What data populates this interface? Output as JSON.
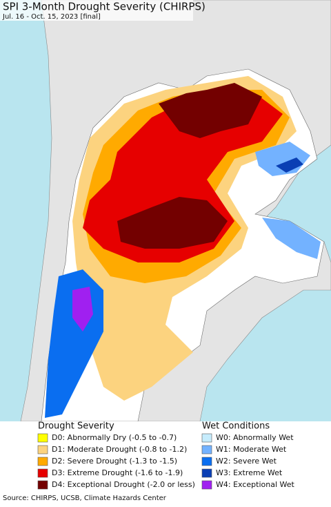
{
  "title": "SPI 3-Month Drought Severity (CHIRPS)",
  "subtitle": "Jul. 16 - Oct. 15, 2023 [final]",
  "legend": {
    "drought": {
      "title": "Drought Severity",
      "items": [
        {
          "label": "D0: Abnormally Dry (-0.5 to -0.7)",
          "color": "#ffff00"
        },
        {
          "label": "D1: Moderate Drought (-0.8 to -1.2)",
          "color": "#fcd37f"
        },
        {
          "label": "D2: Severe Drought (-1.3 to -1.5)",
          "color": "#ffaa00"
        },
        {
          "label": "D3: Extreme Drought (-1.6 to -1.9)",
          "color": "#e60000"
        },
        {
          "label": "D4: Exceptional Drought (-2.0 or less)",
          "color": "#730000"
        }
      ]
    },
    "wet": {
      "title": "Wet Conditions",
      "items": [
        {
          "label": "W0: Abnormally Wet",
          "color": "#c6ecfc"
        },
        {
          "label": "W1: Moderate Wet",
          "color": "#73b2ff"
        },
        {
          "label": "W2: Severe Wet",
          "color": "#0a6ef0"
        },
        {
          "label": "W3: Extreme Wet",
          "color": "#0a3fb4"
        },
        {
          "label": "W4: Exceptional Wet",
          "color": "#a020f0"
        }
      ]
    }
  },
  "source": "Source: CHIRPS, UCSB, Climate Hazards Center"
}
